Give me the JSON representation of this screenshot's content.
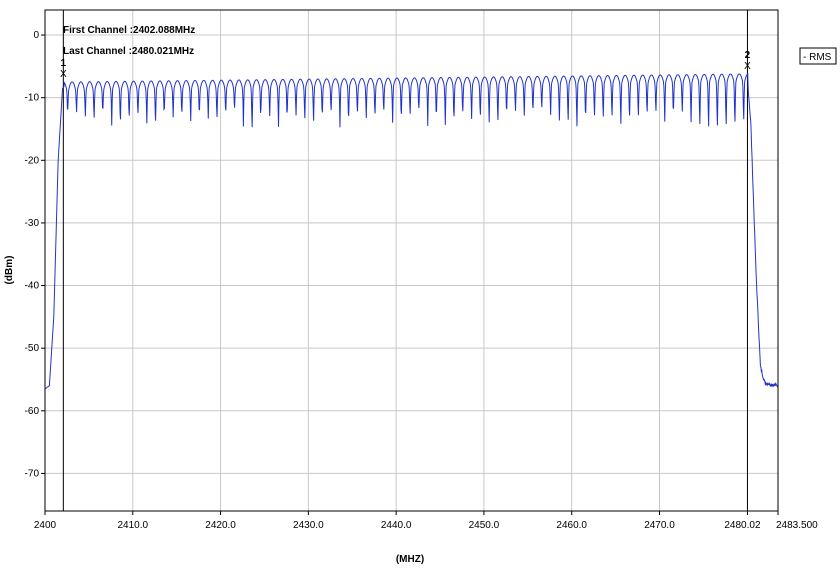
{
  "chart_data": {
    "type": "line",
    "title": "",
    "xlabel": "(MHZ)",
    "ylabel": "(dBm)",
    "xlim": [
      2400,
      2483.5
    ],
    "ylim": [
      -76,
      4
    ],
    "x_ticks": [
      2400,
      2410,
      2420,
      2430,
      2440,
      2450,
      2460,
      2470,
      2480.02,
      2483.5
    ],
    "x_tick_labels": [
      "2400",
      "2410.0",
      "2420.0",
      "2430.0",
      "2440.0",
      "2450.0",
      "2460.0",
      "2470.0",
      "2480.02",
      "2483.500"
    ],
    "y_ticks": [
      0,
      -10,
      -20,
      -30,
      -40,
      -50,
      -60,
      -70
    ],
    "y_tick_labels": [
      "0",
      "-10",
      "-20",
      "-30",
      "-40",
      "-50",
      "-60",
      "-70"
    ],
    "grid": true,
    "legend": {
      "position": "top-right",
      "entries": [
        "- RMS"
      ]
    },
    "series": [
      {
        "name": "RMS",
        "color": "#2233cc",
        "channel_count": 79,
        "channel_spacing_mhz": 1.0,
        "peak_level_start_dbm": -7.5,
        "peak_level_end_dbm": -6.2,
        "notch_level_dbm": [
          -12,
          -16
        ],
        "noise_floor_dbm": -56,
        "points": [
          [
            2400.0,
            -56.5
          ],
          [
            2400.5,
            -56.0
          ],
          [
            2401.0,
            -45.0
          ],
          [
            2401.5,
            -20.0
          ],
          [
            2402.0,
            -8.5
          ],
          [
            2402.5,
            -7.7
          ],
          [
            2479.5,
            -6.2
          ],
          [
            2480.0,
            -6.6
          ],
          [
            2480.4,
            -14.0
          ],
          [
            2481.0,
            -38.0
          ],
          [
            2481.5,
            -53.0
          ],
          [
            2482.0,
            -55.5
          ],
          [
            2483.5,
            -56.0
          ]
        ]
      }
    ],
    "annotations": [
      {
        "text": "First Channel :2402.088MHz"
      },
      {
        "text": "Last Channel :2480.021MHz"
      }
    ],
    "markers": [
      {
        "label": "1",
        "symbol": "X",
        "x": 2402.088,
        "y": -7.5
      },
      {
        "label": "2",
        "symbol": "X",
        "x": 2480.021,
        "y": -6.2
      }
    ],
    "marker_lines": [
      2402.088,
      2480.021
    ]
  }
}
